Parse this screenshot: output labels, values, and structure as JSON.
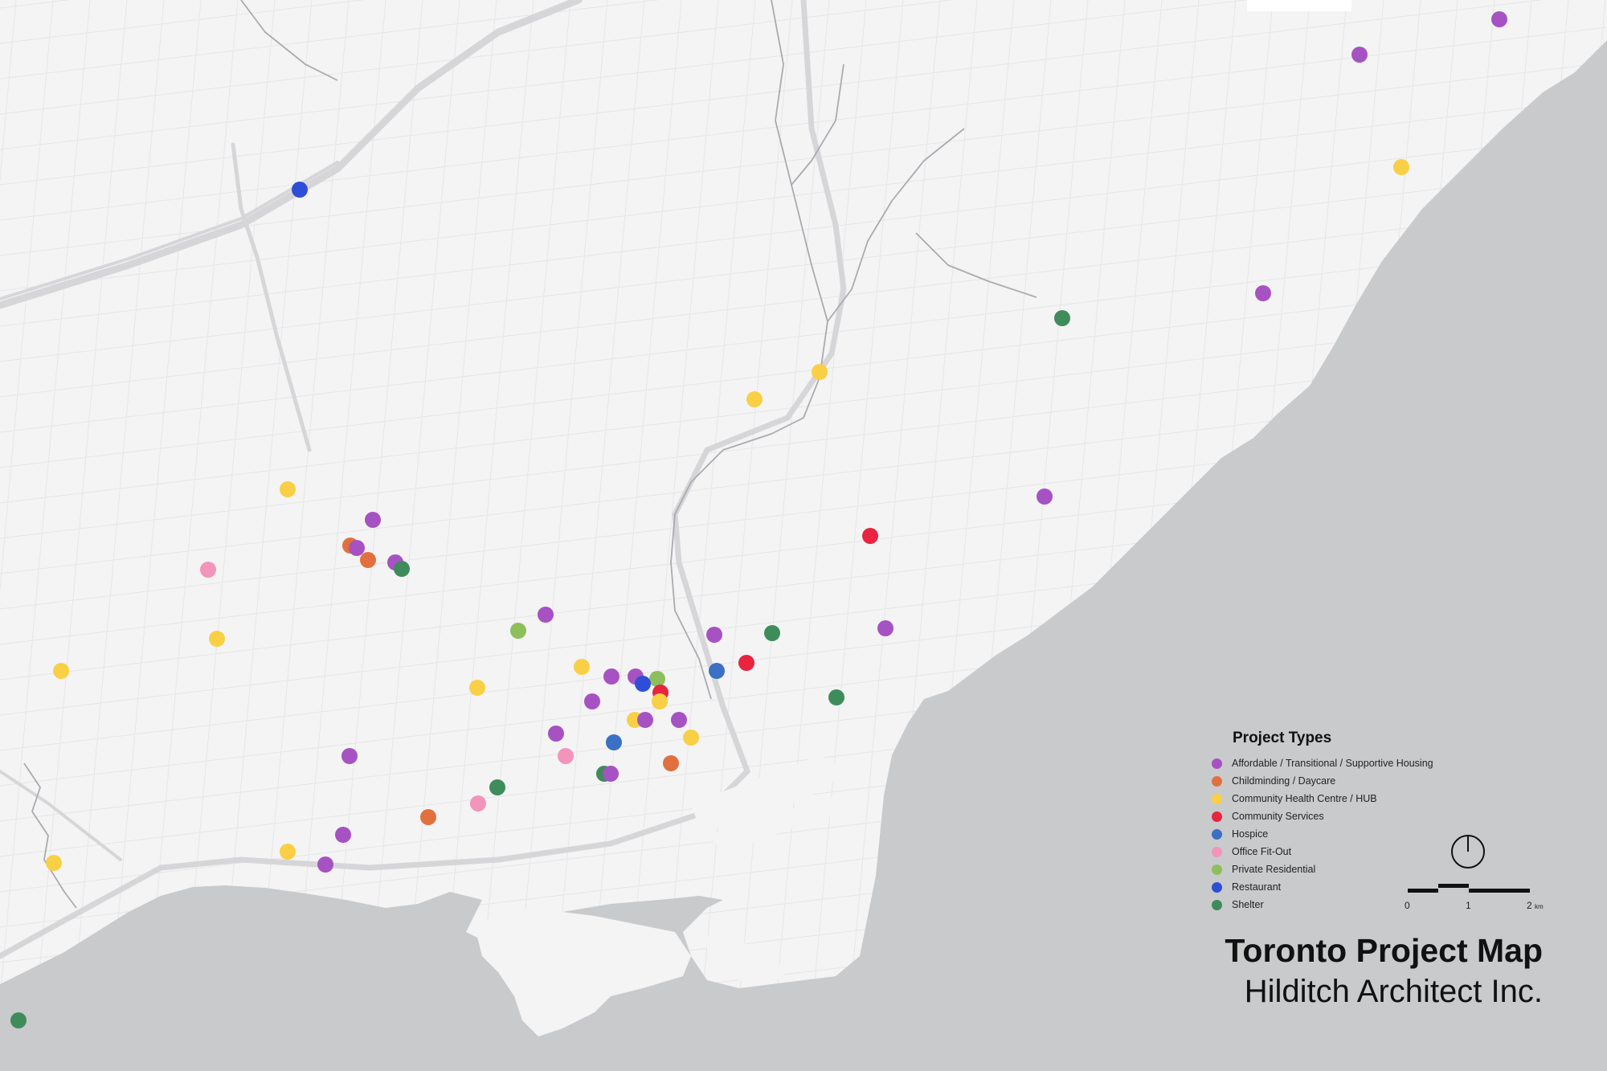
{
  "colors": {
    "land": "#f4f4f5",
    "water": "#c9cacc",
    "road": "#e1e1e3",
    "highway": "#d2d2d5",
    "river": "#9a9ca0"
  },
  "legend": {
    "title": "Project Types",
    "items": [
      {
        "key": "housing",
        "label": "Affordable / Transitional / Supportive Housing",
        "color": "#a652c2"
      },
      {
        "key": "daycare",
        "label": "Childminding / Daycare",
        "color": "#e2703f"
      },
      {
        "key": "health",
        "label": "Community Health Centre / HUB",
        "color": "#f9cf46"
      },
      {
        "key": "community",
        "label": "Community Services",
        "color": "#e8243f"
      },
      {
        "key": "hospice",
        "label": "Hospice",
        "color": "#3b70c4"
      },
      {
        "key": "office",
        "label": "Office Fit-Out",
        "color": "#f394ba"
      },
      {
        "key": "residential",
        "label": "Private Residential",
        "color": "#8dbf5a"
      },
      {
        "key": "restaurant",
        "label": "Restaurant",
        "color": "#2e4ed8"
      },
      {
        "key": "shelter",
        "label": "Shelter",
        "color": "#3f8c5b"
      }
    ]
  },
  "scale_bar": {
    "ticks": [
      "0",
      "1",
      "2"
    ],
    "unit": "km"
  },
  "title": {
    "main": "Toronto Project Map",
    "sub": "Hilditch Architect Inc."
  },
  "markers": [
    {
      "type": "housing",
      "pos": [
        1866,
        24
      ]
    },
    {
      "type": "housing",
      "pos": [
        1692,
        68
      ]
    },
    {
      "type": "health",
      "pos": [
        1744,
        208
      ]
    },
    {
      "type": "restaurant",
      "pos": [
        373,
        236
      ]
    },
    {
      "type": "housing",
      "pos": [
        1572,
        365
      ]
    },
    {
      "type": "shelter",
      "pos": [
        1322,
        396
      ]
    },
    {
      "type": "health",
      "pos": [
        1020,
        463
      ]
    },
    {
      "type": "health",
      "pos": [
        939,
        497
      ]
    },
    {
      "type": "health",
      "pos": [
        358,
        609
      ]
    },
    {
      "type": "housing",
      "pos": [
        1300,
        618
      ]
    },
    {
      "type": "housing",
      "pos": [
        464,
        647
      ]
    },
    {
      "type": "community",
      "pos": [
        1083,
        667
      ]
    },
    {
      "type": "daycare",
      "pos": [
        436,
        679
      ]
    },
    {
      "type": "housing",
      "pos": [
        444,
        682
      ]
    },
    {
      "type": "daycare",
      "pos": [
        458,
        697
      ]
    },
    {
      "type": "housing",
      "pos": [
        492,
        700
      ]
    },
    {
      "type": "shelter",
      "pos": [
        500,
        708
      ]
    },
    {
      "type": "office",
      "pos": [
        259,
        709
      ]
    },
    {
      "type": "housing",
      "pos": [
        679,
        765
      ]
    },
    {
      "type": "residential",
      "pos": [
        645,
        785
      ]
    },
    {
      "type": "housing",
      "pos": [
        1102,
        782
      ]
    },
    {
      "type": "housing",
      "pos": [
        889,
        790
      ]
    },
    {
      "type": "shelter",
      "pos": [
        961,
        788
      ]
    },
    {
      "type": "health",
      "pos": [
        270,
        795
      ]
    },
    {
      "type": "community",
      "pos": [
        929,
        825
      ]
    },
    {
      "type": "hospice",
      "pos": [
        892,
        835
      ]
    },
    {
      "type": "health",
      "pos": [
        76,
        835
      ]
    },
    {
      "type": "health",
      "pos": [
        724,
        830
      ]
    },
    {
      "type": "housing",
      "pos": [
        761,
        842
      ]
    },
    {
      "type": "housing",
      "pos": [
        791,
        842
      ]
    },
    {
      "type": "residential",
      "pos": [
        818,
        845
      ]
    },
    {
      "type": "restaurant",
      "pos": [
        800,
        851
      ]
    },
    {
      "type": "health",
      "pos": [
        594,
        856
      ]
    },
    {
      "type": "community",
      "pos": [
        822,
        862
      ]
    },
    {
      "type": "health",
      "pos": [
        821,
        873
      ]
    },
    {
      "type": "housing",
      "pos": [
        737,
        873
      ]
    },
    {
      "type": "shelter",
      "pos": [
        1041,
        868
      ]
    },
    {
      "type": "health",
      "pos": [
        790,
        896
      ]
    },
    {
      "type": "housing",
      "pos": [
        803,
        896
      ]
    },
    {
      "type": "housing",
      "pos": [
        845,
        896
      ]
    },
    {
      "type": "health",
      "pos": [
        860,
        918
      ]
    },
    {
      "type": "housing",
      "pos": [
        692,
        913
      ]
    },
    {
      "type": "hospice",
      "pos": [
        764,
        924
      ]
    },
    {
      "type": "housing",
      "pos": [
        435,
        941
      ]
    },
    {
      "type": "office",
      "pos": [
        704,
        941
      ]
    },
    {
      "type": "daycare",
      "pos": [
        835,
        950
      ]
    },
    {
      "type": "shelter",
      "pos": [
        752,
        963
      ]
    },
    {
      "type": "housing",
      "pos": [
        760,
        963
      ]
    },
    {
      "type": "shelter",
      "pos": [
        619,
        980
      ]
    },
    {
      "type": "office",
      "pos": [
        595,
        1000
      ]
    },
    {
      "type": "daycare",
      "pos": [
        533,
        1017
      ]
    },
    {
      "type": "housing",
      "pos": [
        427,
        1039
      ]
    },
    {
      "type": "health",
      "pos": [
        358,
        1060
      ]
    },
    {
      "type": "housing",
      "pos": [
        405,
        1076
      ]
    },
    {
      "type": "health",
      "pos": [
        67,
        1074
      ]
    },
    {
      "type": "shelter",
      "pos": [
        23,
        1270
      ]
    }
  ]
}
